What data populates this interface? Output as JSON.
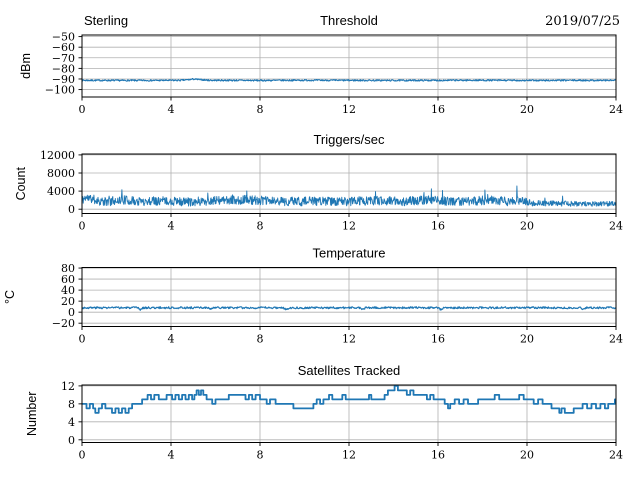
{
  "figure": {
    "background": "#ffffff",
    "station": "Sterling",
    "date": "2019/07/25"
  },
  "style": {
    "line_color": "#1f77b4",
    "grid_color": "#b0b0b0",
    "spine_color": "#000000",
    "text_color": "#000000"
  },
  "chart_data": [
    {
      "id": "threshold",
      "type": "line",
      "title": "Threshold",
      "title_left": "Sterling",
      "title_right": "2019/07/25",
      "ylabel": "dBm",
      "xlim": [
        0,
        24
      ],
      "ylim": [
        -107,
        -48.5
      ],
      "xticks": [
        0,
        4,
        8,
        12,
        16,
        20,
        24
      ],
      "xtick_labels": [
        "0",
        "4",
        "8",
        "12",
        "16",
        "20",
        "24"
      ],
      "yticks": [
        -50,
        -60,
        -70,
        -80,
        -90,
        -100
      ],
      "ytick_labels": [
        "−50",
        "−60",
        "−70",
        "−80",
        "−90",
        "−100"
      ],
      "grid": true,
      "legend": "none",
      "series": [
        {
          "name": "threshold-dbm",
          "style": "noisy",
          "seed": 7,
          "samples": 1100,
          "line_width": 1.1,
          "mean_points": [
            [
              0,
              -91.3
            ],
            [
              2,
              -91.4
            ],
            [
              4.4,
              -91.3
            ],
            [
              4.8,
              -90.7
            ],
            [
              5.0,
              -90.1
            ],
            [
              5.3,
              -90.6
            ],
            [
              5.7,
              -91.2
            ],
            [
              8,
              -91.4
            ],
            [
              10,
              -91.2
            ],
            [
              12,
              -91.3
            ],
            [
              14,
              -91.4
            ],
            [
              16,
              -91.3
            ],
            [
              18,
              -91.2
            ],
            [
              20,
              -91.4
            ],
            [
              22,
              -91.3
            ],
            [
              24,
              -91.3
            ]
          ],
          "noise_points": [
            [
              0,
              0.7
            ],
            [
              24,
              0.7
            ]
          ]
        }
      ]
    },
    {
      "id": "triggers",
      "type": "line",
      "title": "Triggers/sec",
      "ylabel": "Count",
      "xlim": [
        0,
        24
      ],
      "ylim": [
        -950,
        12200
      ],
      "xticks": [
        0,
        4,
        8,
        12,
        16,
        20,
        24
      ],
      "xtick_labels": [
        "0",
        "4",
        "8",
        "12",
        "16",
        "20",
        "24"
      ],
      "yticks": [
        12000,
        8000,
        4000,
        0
      ],
      "ytick_labels": [
        "12000",
        "8000",
        "4000",
        "0"
      ],
      "grid": true,
      "legend": "none",
      "series": [
        {
          "name": "triggers-per-sec",
          "style": "noisy",
          "seed": 11,
          "samples": 1300,
          "line_width": 0.9,
          "clip_min": 250,
          "spike_prob": 0.015,
          "spike_extra": 1500,
          "mean_points": [
            [
              0,
              1900
            ],
            [
              0.15,
              2600
            ],
            [
              1,
              1600
            ],
            [
              1.8,
              2100
            ],
            [
              2.5,
              1700
            ],
            [
              3.5,
              1900
            ],
            [
              4.5,
              1600
            ],
            [
              5.5,
              1800
            ],
            [
              6.5,
              1900
            ],
            [
              7.4,
              2100
            ],
            [
              8.5,
              1800
            ],
            [
              9.5,
              1700
            ],
            [
              10.5,
              1800
            ],
            [
              11.5,
              1700
            ],
            [
              12.5,
              1800
            ],
            [
              13.5,
              1900
            ],
            [
              14.5,
              1700
            ],
            [
              15.6,
              2100
            ],
            [
              16.5,
              1700
            ],
            [
              17.5,
              1800
            ],
            [
              18.3,
              2000
            ],
            [
              19.2,
              1700
            ],
            [
              19.6,
              2000
            ],
            [
              20.2,
              1300
            ],
            [
              21,
              1300
            ],
            [
              22,
              1200
            ],
            [
              23,
              1150
            ],
            [
              24,
              1250
            ]
          ],
          "noise_points": [
            [
              0,
              1000
            ],
            [
              19.8,
              1000
            ],
            [
              20.3,
              650
            ],
            [
              24,
              520
            ]
          ],
          "spikes": [
            [
              1.8,
              4300
            ],
            [
              7.4,
              4050
            ],
            [
              13.2,
              3900
            ],
            [
              15.7,
              4500
            ],
            [
              16.2,
              4150
            ],
            [
              18.1,
              4250
            ],
            [
              19.55,
              5150
            ],
            [
              21.6,
              2900
            ]
          ]
        }
      ]
    },
    {
      "id": "temperature",
      "type": "line",
      "title": "Temperature",
      "ylabel": "°C",
      "xlim": [
        0,
        24
      ],
      "ylim": [
        -26,
        81
      ],
      "xticks": [
        0,
        4,
        8,
        12,
        16,
        20,
        24
      ],
      "xtick_labels": [
        "0",
        "4",
        "8",
        "12",
        "16",
        "20",
        "24"
      ],
      "yticks": [
        80,
        60,
        40,
        20,
        0,
        -20
      ],
      "ytick_labels": [
        "80",
        "60",
        "40",
        "20",
        "0",
        "−20"
      ],
      "grid": true,
      "legend": "none",
      "series": [
        {
          "name": "temperature-c",
          "style": "noisy",
          "seed": 3,
          "samples": 900,
          "line_width": 1.2,
          "mean_points": [
            [
              0,
              8
            ],
            [
              2.5,
              8
            ],
            [
              2.62,
              4.5
            ],
            [
              2.75,
              8
            ],
            [
              5.65,
              8
            ],
            [
              5.78,
              5
            ],
            [
              5.9,
              8
            ],
            [
              9.05,
              8
            ],
            [
              9.18,
              4.5
            ],
            [
              9.3,
              8
            ],
            [
              12.5,
              8
            ],
            [
              12.62,
              5
            ],
            [
              12.75,
              8
            ],
            [
              16.0,
              8
            ],
            [
              16.12,
              5
            ],
            [
              16.25,
              8
            ],
            [
              22.4,
              8
            ],
            [
              22.52,
              5.5
            ],
            [
              22.65,
              8
            ],
            [
              24,
              8
            ]
          ],
          "noise_points": [
            [
              0,
              1.8
            ],
            [
              24,
              1.8
            ]
          ]
        }
      ]
    },
    {
      "id": "satellites",
      "type": "line",
      "title": "Satellites Tracked",
      "ylabel": "Number",
      "xlim": [
        0,
        24
      ],
      "ylim": [
        -0.6,
        12.2
      ],
      "xticks": [
        0,
        4,
        8,
        12,
        16,
        20,
        24
      ],
      "xtick_labels": [
        "0",
        "4",
        "8",
        "12",
        "16",
        "20",
        "24"
      ],
      "yticks": [
        12,
        8,
        4,
        0
      ],
      "ytick_labels": [
        "12",
        "8",
        "4",
        "0"
      ],
      "grid": true,
      "legend": "none",
      "series": [
        {
          "name": "satellites-tracked",
          "style": "step",
          "line_width": 1.8,
          "points": [
            [
              0,
              8
            ],
            [
              0.2,
              7
            ],
            [
              0.35,
              8
            ],
            [
              0.5,
              7
            ],
            [
              0.6,
              6
            ],
            [
              0.75,
              7
            ],
            [
              0.9,
              8
            ],
            [
              1.05,
              7
            ],
            [
              1.35,
              6
            ],
            [
              1.5,
              7
            ],
            [
              1.65,
              6
            ],
            [
              1.8,
              7
            ],
            [
              1.95,
              6
            ],
            [
              2.1,
              7
            ],
            [
              2.25,
              8
            ],
            [
              2.7,
              9
            ],
            [
              2.95,
              10
            ],
            [
              3.1,
              9
            ],
            [
              3.25,
              10
            ],
            [
              3.45,
              9
            ],
            [
              3.8,
              10
            ],
            [
              4.05,
              9
            ],
            [
              4.2,
              10
            ],
            [
              4.35,
              9
            ],
            [
              4.5,
              10
            ],
            [
              4.65,
              9
            ],
            [
              4.8,
              10
            ],
            [
              4.95,
              9
            ],
            [
              5.05,
              10
            ],
            [
              5.15,
              11
            ],
            [
              5.25,
              10
            ],
            [
              5.35,
              11
            ],
            [
              5.45,
              10
            ],
            [
              5.6,
              9
            ],
            [
              5.85,
              8
            ],
            [
              6.0,
              9
            ],
            [
              6.6,
              10
            ],
            [
              7.15,
              10
            ],
            [
              7.35,
              9
            ],
            [
              7.5,
              10
            ],
            [
              7.65,
              9
            ],
            [
              7.8,
              10
            ],
            [
              8.0,
              9
            ],
            [
              8.3,
              8
            ],
            [
              8.45,
              9
            ],
            [
              8.7,
              8
            ],
            [
              9.5,
              7
            ],
            [
              10.4,
              8
            ],
            [
              10.55,
              9
            ],
            [
              10.7,
              8
            ],
            [
              10.85,
              9
            ],
            [
              11.1,
              10
            ],
            [
              11.25,
              9
            ],
            [
              11.7,
              10
            ],
            [
              11.85,
              9
            ],
            [
              12.3,
              9
            ],
            [
              12.9,
              10
            ],
            [
              13.0,
              9
            ],
            [
              13.6,
              10
            ],
            [
              13.75,
              11
            ],
            [
              14.05,
              12
            ],
            [
              14.2,
              11
            ],
            [
              14.45,
              11
            ],
            [
              14.6,
              10
            ],
            [
              14.75,
              11
            ],
            [
              14.9,
              10
            ],
            [
              15.35,
              10
            ],
            [
              15.5,
              9
            ],
            [
              15.65,
              10
            ],
            [
              15.8,
              9
            ],
            [
              16.1,
              9
            ],
            [
              16.3,
              8
            ],
            [
              16.45,
              7
            ],
            [
              16.55,
              8
            ],
            [
              16.75,
              9
            ],
            [
              16.95,
              8
            ],
            [
              17.15,
              9
            ],
            [
              17.35,
              8
            ],
            [
              17.8,
              9
            ],
            [
              18.1,
              9
            ],
            [
              18.55,
              10
            ],
            [
              18.75,
              9
            ],
            [
              19.4,
              9
            ],
            [
              19.65,
              10
            ],
            [
              19.85,
              9
            ],
            [
              20.1,
              9
            ],
            [
              20.3,
              8
            ],
            [
              20.5,
              9
            ],
            [
              20.7,
              8
            ],
            [
              21.1,
              7
            ],
            [
              21.45,
              6
            ],
            [
              21.55,
              7
            ],
            [
              21.7,
              6
            ],
            [
              22.1,
              7
            ],
            [
              22.5,
              8
            ],
            [
              22.7,
              7
            ],
            [
              22.9,
              8
            ],
            [
              23.1,
              7
            ],
            [
              23.3,
              8
            ],
            [
              23.5,
              7
            ],
            [
              23.65,
              8
            ],
            [
              23.95,
              9
            ],
            [
              24,
              8
            ]
          ]
        }
      ]
    }
  ]
}
